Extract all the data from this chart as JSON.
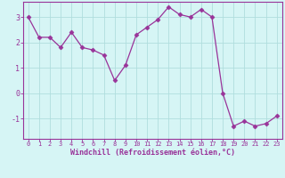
{
  "hours": [
    0,
    1,
    2,
    3,
    4,
    5,
    6,
    7,
    8,
    9,
    10,
    11,
    12,
    13,
    14,
    15,
    16,
    17,
    18,
    19,
    20,
    21,
    22,
    23
  ],
  "values": [
    3.0,
    2.2,
    2.2,
    1.8,
    2.4,
    1.8,
    1.7,
    1.5,
    0.5,
    1.1,
    2.3,
    2.6,
    2.9,
    3.4,
    3.1,
    3.0,
    3.3,
    3.0,
    0.0,
    -1.3,
    -1.1,
    -1.3,
    -1.2,
    -0.9
  ],
  "line_color": "#993399",
  "marker": "D",
  "markersize": 2.5,
  "linewidth": 0.9,
  "xlabel": "Windchill (Refroidissement éolien,°C)",
  "xlabel_color": "#993399",
  "bg_color": "#d6f5f5",
  "grid_color": "#b0dede",
  "axis_color": "#993399",
  "tick_color": "#993399",
  "ylim": [
    -1.8,
    3.6
  ],
  "yticks": [
    -1,
    0,
    1,
    2,
    3
  ],
  "xlim": [
    -0.5,
    23.5
  ]
}
